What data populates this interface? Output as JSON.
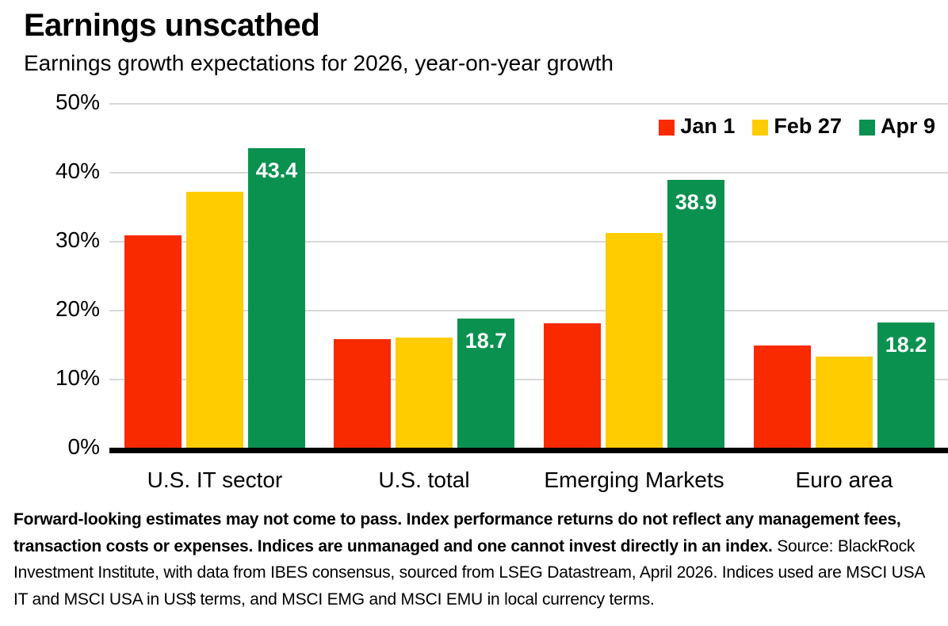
{
  "header": {
    "title": "Earnings unscathed",
    "subtitle": "Earnings growth expectations for 2026, year-on-year growth"
  },
  "colors": {
    "jan1_red": "#F92A00",
    "feb27_yellow": "#FFCC00",
    "apr9_green": "#0A9150",
    "gridline": "#D8D8D8",
    "axis_line": "#000000",
    "bar_label_text": "#FFFFFF"
  },
  "chart_data": {
    "type": "bar",
    "title": "Earnings unscathed",
    "subtitle": "Earnings growth expectations for 2026, year-on-year growth",
    "categories": [
      "U.S. IT sector",
      "U.S. total",
      "Emerging Markets",
      "Euro area"
    ],
    "series": [
      {
        "name": "Jan 1",
        "color": "#F92A00",
        "values": [
          30.8,
          15.7,
          18.1,
          14.8
        ]
      },
      {
        "name": "Feb 27",
        "color": "#FFCC00",
        "values": [
          37.1,
          16.0,
          31.1,
          13.2
        ]
      },
      {
        "name": "Apr 9",
        "color": "#0A9150",
        "values": [
          43.4,
          18.7,
          38.9,
          18.2
        ],
        "data_labels": [
          "43.4",
          "18.7",
          "38.9",
          "18.2"
        ]
      }
    ],
    "xlabel": "",
    "ylabel": "",
    "ylim": [
      0,
      50
    ],
    "yticks": [
      {
        "label": "50%",
        "value": 50
      },
      {
        "label": "40%",
        "value": 40
      },
      {
        "label": "30%",
        "value": 30
      },
      {
        "label": "20%",
        "value": 20
      },
      {
        "label": "10%",
        "value": 10
      },
      {
        "label": "0%",
        "value": 0
      }
    ],
    "grid": true,
    "legend_position": "top-right"
  },
  "footnote": {
    "bold": "Forward-looking estimates may not come to pass. Index performance returns do not reflect any management fees, transaction costs or expenses. Indices are unmanaged and one cannot invest directly in an index.",
    "regular": "Source: BlackRock Investment Institute, with data from IBES consensus, sourced from LSEG Datastream, April 2026. Indices used are MSCI USA IT and MSCI USA in US$ terms, and MSCI EMG and MSCI EMU in local currency terms."
  }
}
